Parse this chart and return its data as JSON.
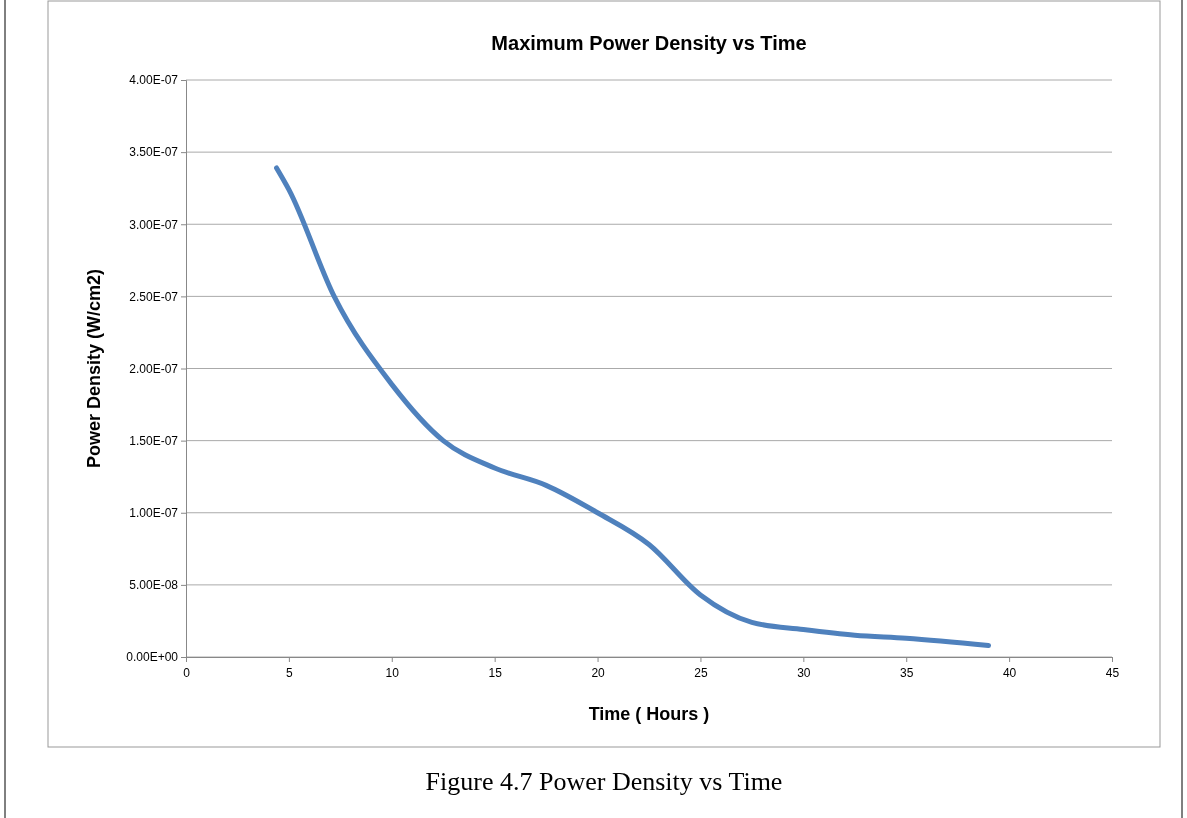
{
  "chart_data": {
    "type": "line",
    "title": "Maximum Power Density vs Time",
    "xlabel": "Time ( Hours )",
    "ylabel": "Power Density (W/cm2)",
    "annotations": [
      "Figure 4.7 Power Density vs Time"
    ],
    "xlim": [
      0,
      45
    ],
    "xticks": [
      0,
      5,
      10,
      15,
      20,
      25,
      30,
      35,
      40,
      45
    ],
    "ylim": [
      0,
      4e-07
    ],
    "yticks": [
      {
        "value": 0,
        "label": "0.00E+00"
      },
      {
        "value": 5e-08,
        "label": "5.00E-08"
      },
      {
        "value": 1e-07,
        "label": "1.00E-07"
      },
      {
        "value": 1.5e-07,
        "label": "1.50E-07"
      },
      {
        "value": 2e-07,
        "label": "2.00E-07"
      },
      {
        "value": 2.5e-07,
        "label": "2.50E-07"
      },
      {
        "value": 3e-07,
        "label": "3.00E-07"
      },
      {
        "value": 3.5e-07,
        "label": "3.50E-07"
      },
      {
        "value": 4e-07,
        "label": "4.00E-07"
      }
    ],
    "grid": "y",
    "legend": false,
    "marker": "none",
    "line_style": "solid",
    "series": [
      {
        "color": "#4f81bd",
        "x": [
          4.4,
          5,
          7.2,
          10,
          12.5,
          15,
          17.5,
          20,
          22.5,
          25,
          27.5,
          30,
          32.5,
          35,
          39
        ],
        "values": [
          3.39e-07,
          3.24e-07,
          2.5e-07,
          1.89e-07,
          1.5e-07,
          1.31e-07,
          1.19e-07,
          1e-07,
          7.8e-08,
          4.3e-08,
          2.4e-08,
          1.9e-08,
          1.5e-08,
          1.3e-08,
          8e-09
        ]
      }
    ]
  }
}
